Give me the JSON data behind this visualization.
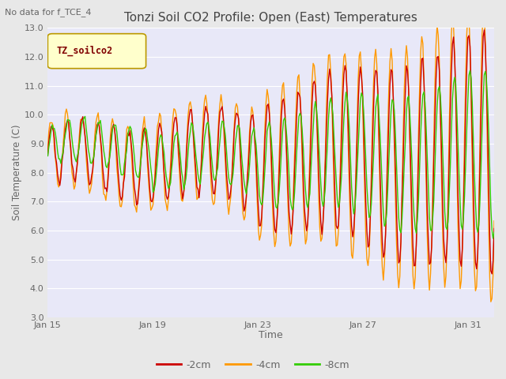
{
  "title": "Tonzi Soil CO2 Profile: Open (East) Temperatures",
  "subtitle": "No data for f_TCE_4",
  "xlabel": "Time",
  "ylabel": "Soil Temperature (C)",
  "ylim": [
    3.0,
    13.0
  ],
  "yticks": [
    3.0,
    4.0,
    5.0,
    6.0,
    7.0,
    8.0,
    9.0,
    10.0,
    11.0,
    12.0,
    13.0
  ],
  "xtick_labels": [
    "Jan 15",
    "Jan 19",
    "Jan 23",
    "Jan 27",
    "Jan 31"
  ],
  "legend_label": "TZ_soilco2",
  "series_labels": [
    "-2cm",
    "-4cm",
    "-8cm"
  ],
  "series_colors": [
    "#cc0000",
    "#ff9900",
    "#33cc00"
  ],
  "background_color": "#e8e8e8",
  "plot_bg_color": "#e8e8f8",
  "title_color": "#444444",
  "axis_color": "#666666",
  "grid_color": "#ffffff",
  "legend_box_color": "#ffffcc",
  "legend_text_color": "#800000",
  "figsize": [
    6.4,
    4.8
  ],
  "dpi": 100
}
